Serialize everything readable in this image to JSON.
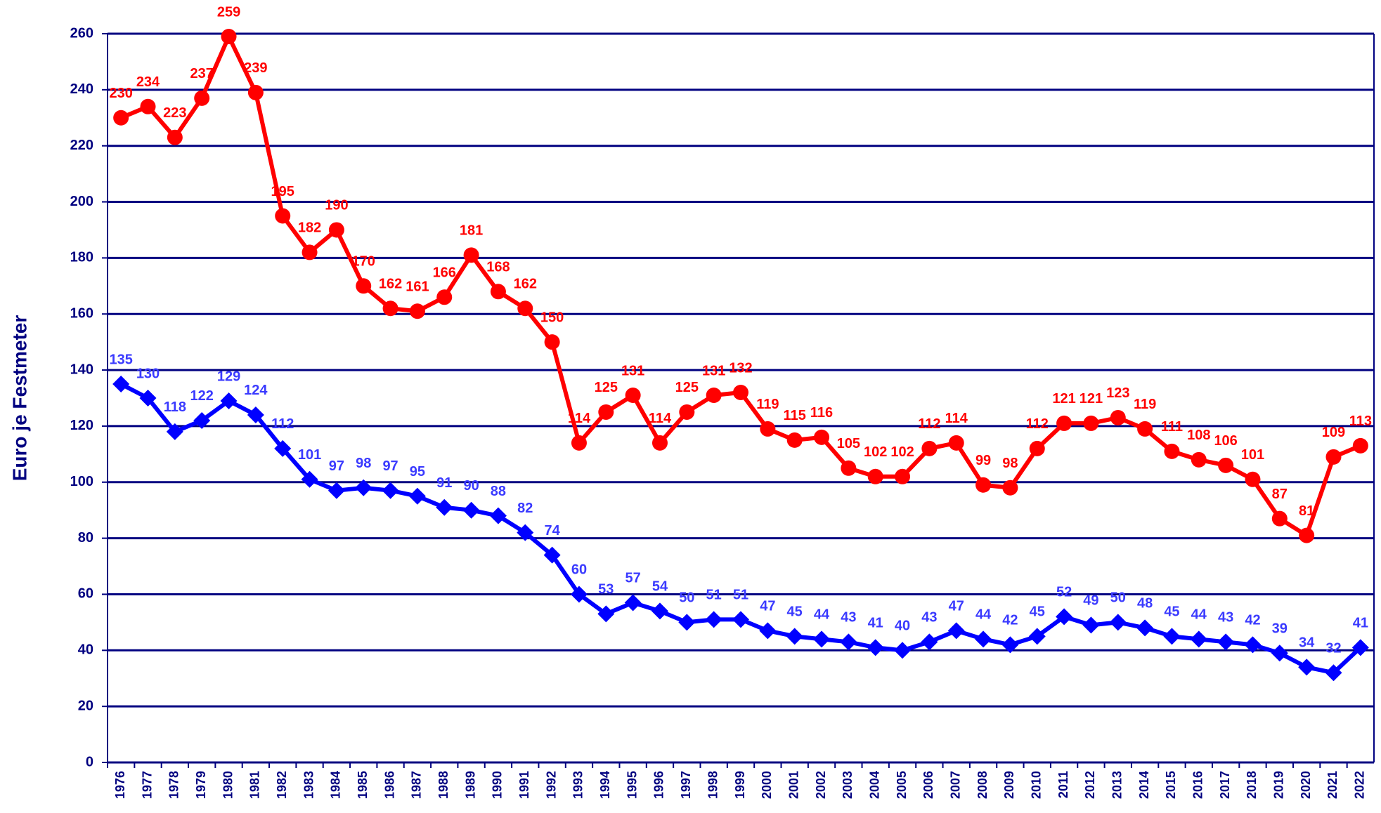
{
  "chart_data": {
    "type": "line",
    "ylabel": "Euro je Festmeter",
    "categories": [
      "1976",
      "1977",
      "1978",
      "1979",
      "1980",
      "1981",
      "1982",
      "1983",
      "1984",
      "1985",
      "1986",
      "1987",
      "1988",
      "1989",
      "1990",
      "1991",
      "1992",
      "1993",
      "1994",
      "1995",
      "1996",
      "1997",
      "1998",
      "1999",
      "2000",
      "2001",
      "2002",
      "2003",
      "2004",
      "2005",
      "2006",
      "2007",
      "2008",
      "2009",
      "2010",
      "2011",
      "2012",
      "2013",
      "2014",
      "2015",
      "2016",
      "2017",
      "2018",
      "2019",
      "2020",
      "2021",
      "2022"
    ],
    "series": [
      {
        "color": "#ff0000",
        "label_color": "#ff0000",
        "marker": "circle",
        "values": [
          230,
          234,
          223,
          237,
          259,
          239,
          195,
          182,
          190,
          170,
          162,
          161,
          166,
          181,
          168,
          162,
          150,
          114,
          125,
          131,
          114,
          125,
          131,
          132,
          119,
          115,
          116,
          105,
          102,
          102,
          112,
          114,
          99,
          98,
          112,
          121,
          121,
          123,
          119,
          111,
          108,
          106,
          101,
          87,
          81,
          109,
          113
        ]
      },
      {
        "color": "#0000ff",
        "label_color": "#3a3aff",
        "marker": "diamond",
        "values": [
          135,
          130,
          118,
          122,
          129,
          124,
          112,
          101,
          97,
          98,
          97,
          95,
          91,
          90,
          88,
          82,
          74,
          60,
          53,
          57,
          54,
          50,
          51,
          51,
          47,
          45,
          44,
          43,
          41,
          40,
          43,
          47,
          44,
          42,
          45,
          52,
          49,
          50,
          48,
          45,
          44,
          43,
          42,
          39,
          34,
          32,
          41
        ]
      }
    ],
    "ylim": [
      0,
      260
    ],
    "yticks": [
      0,
      20,
      40,
      60,
      80,
      100,
      120,
      140,
      160,
      180,
      200,
      220,
      240,
      260
    ],
    "grid": true
  }
}
